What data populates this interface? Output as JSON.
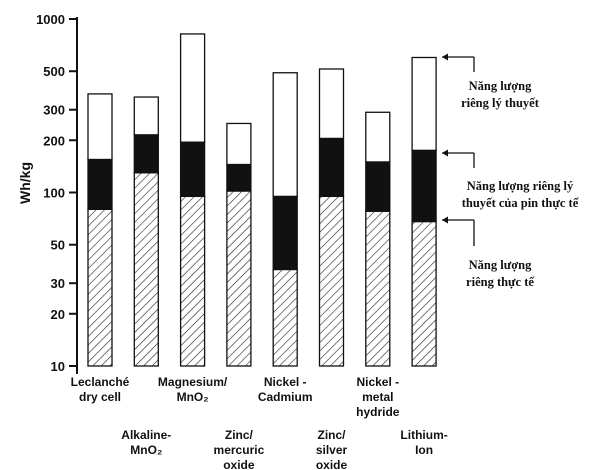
{
  "chart_data": {
    "type": "bar",
    "stacked": true,
    "yscale": "log",
    "ylabel": "Wh/kg",
    "ylim": [
      10,
      1000
    ],
    "yticks": [
      10,
      20,
      30,
      50,
      100,
      200,
      300,
      500,
      1000
    ],
    "categories": [
      [
        "Leclanché",
        "dry cell"
      ],
      [
        "Alkaline-",
        "MnO₂"
      ],
      [
        "Magnesium/",
        "MnO₂"
      ],
      [
        "Zinc/",
        "mercuric",
        "oxide"
      ],
      [
        "Nickel -",
        "Cadmium"
      ],
      [
        "Zinc/",
        "silver",
        "oxide"
      ],
      [
        "Nickel -",
        "metal",
        "hydride"
      ],
      [
        "Lithium-",
        "Ion"
      ]
    ],
    "series": [
      {
        "name": "Năng lượng riêng thực tế",
        "fill": "hatched",
        "values": [
          80,
          130,
          95,
          102,
          36,
          95,
          78,
          68
        ]
      },
      {
        "name": "Năng lượng riêng lý thuyết của pin thực tế",
        "fill": "#111111",
        "values": [
          155,
          215,
          195,
          145,
          95,
          205,
          150,
          175
        ]
      },
      {
        "name": "Năng lượng riêng lý thuyết",
        "fill": "#ffffff",
        "values": [
          370,
          355,
          820,
          250,
          490,
          515,
          290,
          600
        ]
      }
    ],
    "legend": [
      {
        "lines": [
          "Năng lượng",
          "riêng lý thuyết"
        ]
      },
      {
        "lines": [
          "Năng lượng riêng lý",
          "thuyết của pin thực tế"
        ]
      },
      {
        "lines": [
          "Năng lượng",
          "riêng thực tế"
        ]
      }
    ]
  }
}
